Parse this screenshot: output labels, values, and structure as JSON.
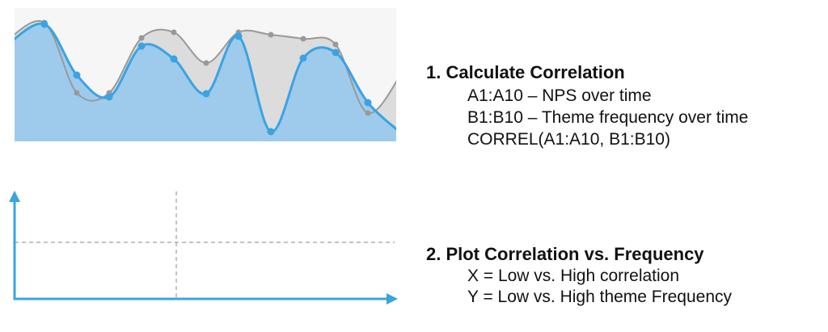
{
  "steps": [
    {
      "title": "1. Calculate Correlation",
      "lines": [
        "A1:A10 – NPS over time",
        "B1:B10 – Theme frequency over time",
        "CORREL(A1:A10, B1:B10)"
      ]
    },
    {
      "title": "2. Plot Correlation vs. Frequency",
      "lines": [
        "X = Low vs. High correlation",
        "Y = Low vs. High theme Frequency"
      ]
    }
  ]
}
